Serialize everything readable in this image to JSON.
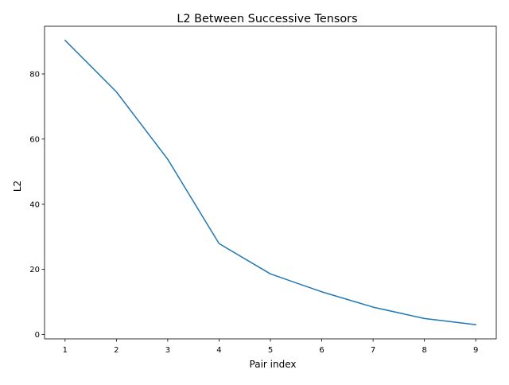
{
  "chart_data": {
    "type": "line",
    "title": "L2 Between Successive Tensors",
    "xlabel": "Pair index",
    "ylabel": "L2",
    "x": [
      1,
      2,
      3,
      4,
      5,
      6,
      7,
      8,
      9
    ],
    "series": [
      {
        "values": [
          90.3,
          74.5,
          53.8,
          27.9,
          18.6,
          13.1,
          8.4,
          4.9,
          3.0
        ]
      }
    ],
    "xlim": [
      0.6,
      9.4
    ],
    "ylim": [
      -1.35,
      94.65
    ],
    "xticks": [
      1,
      2,
      3,
      4,
      5,
      6,
      7,
      8,
      9
    ],
    "yticks": [
      0,
      20,
      40,
      60,
      80
    ],
    "grid": false,
    "legend": "none",
    "line_color": "#1f77b4"
  }
}
